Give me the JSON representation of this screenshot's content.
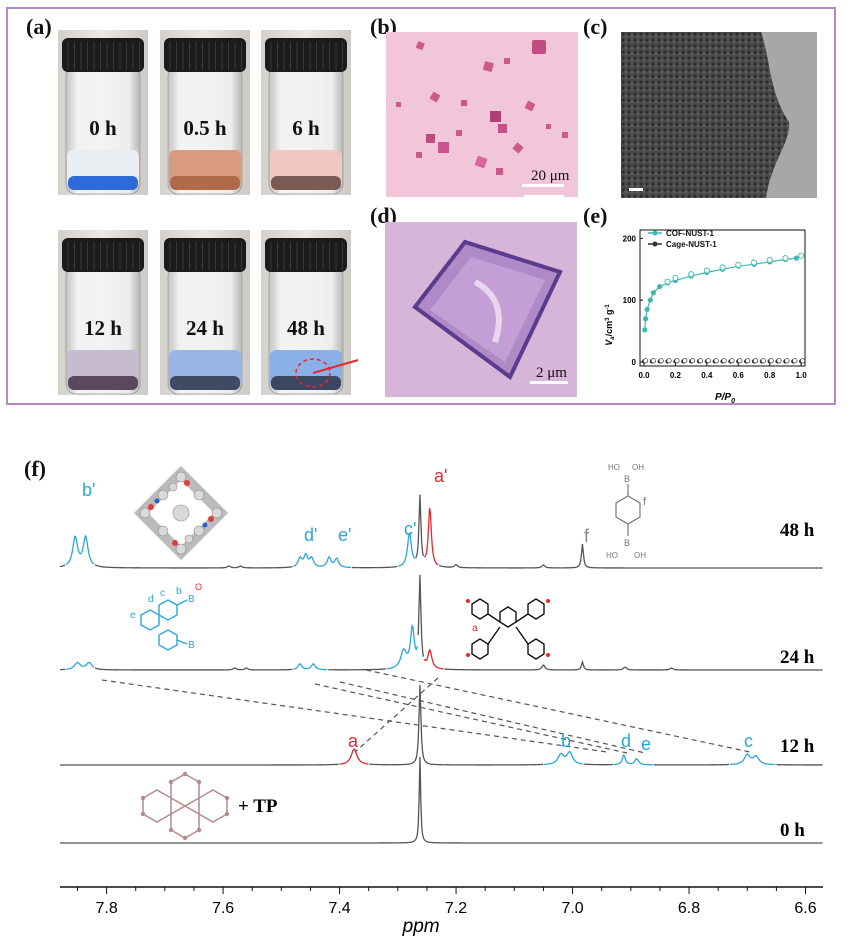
{
  "panels": {
    "a": "(a)",
    "b": "(b)",
    "c": "(c)",
    "d": "(d)",
    "e": "(e)",
    "f": "(f)"
  },
  "vials": [
    {
      "time": "0 h",
      "liquid": "#e9eef3",
      "sediment": "#2f6bd8"
    },
    {
      "time": "0.5 h",
      "liquid": "#d89b82",
      "sediment": "#b06a4a"
    },
    {
      "time": "6 h",
      "liquid": "#efc8bf",
      "sediment": "#7a5a52"
    },
    {
      "time": "12 h",
      "liquid": "#c7bccf",
      "sediment": "#59485e"
    },
    {
      "time": "24 h",
      "liquid": "#97b6e6",
      "sediment": "#404a63"
    },
    {
      "time": "48 h",
      "liquid": "#8bb0e8",
      "sediment": "#3b4660"
    }
  ],
  "scalebars": {
    "b": "20 μm",
    "d": "2 μm"
  },
  "chart_e": {
    "type": "scatter",
    "legend": [
      "COF-NUST-1",
      "Cage-NUST-1"
    ],
    "ylabel_main": "V",
    "ylabel_sub": "a",
    "ylabel_unit": "/cm",
    "ylabel_sup": "3",
    "ylabel_tail": " g",
    "ylabel_sup2": "-1",
    "xlabel_main": "P/P",
    "xlabel_sub": "0",
    "xticks": [
      "0.0",
      "0.2",
      "0.4",
      "0.6",
      "0.8",
      "1.0"
    ],
    "yticks": [
      "0",
      "100",
      "200"
    ],
    "colors": {
      "cof": "#3fb8b0",
      "cage": "#333333"
    }
  },
  "chart_data": {
    "type": "line",
    "xlabel": "ppm",
    "xticks": [
      "7.8",
      "7.6",
      "7.4",
      "7.2",
      "7.0",
      "6.8",
      "6.6"
    ],
    "xlim": [
      7.88,
      6.57
    ],
    "series": [
      {
        "name": "48 h"
      },
      {
        "name": "24 h"
      },
      {
        "name": "12 h"
      },
      {
        "name": "0 h"
      }
    ],
    "peak_labels": {
      "b_prime": "b'",
      "d_prime": "d'",
      "e_prime": "e'",
      "c_prime": "c'",
      "a_prime": "a'",
      "f": "f",
      "a": "a",
      "b": "b",
      "d": "d",
      "e": "e",
      "c": "c"
    },
    "annotation_tp": "+ TP"
  },
  "molecule_labels": {
    "boronic": {
      "b_top": "B",
      "oh_top": "OH",
      "ho_top": "HO",
      "f": "f",
      "b_bot": "B",
      "oh_bot": "OH",
      "ho_bot": "HO"
    },
    "biphenyl": {
      "e": "e",
      "d": "d",
      "c": "c",
      "b": "b",
      "b1": "B",
      "b2": "B",
      "o": "O"
    },
    "triptycene": {
      "a": "a"
    }
  },
  "colors": {
    "frame": "#b887c6",
    "accent_blue": "#29a6dc",
    "accent_red": "#e3272c",
    "spectrum": "#555555"
  }
}
